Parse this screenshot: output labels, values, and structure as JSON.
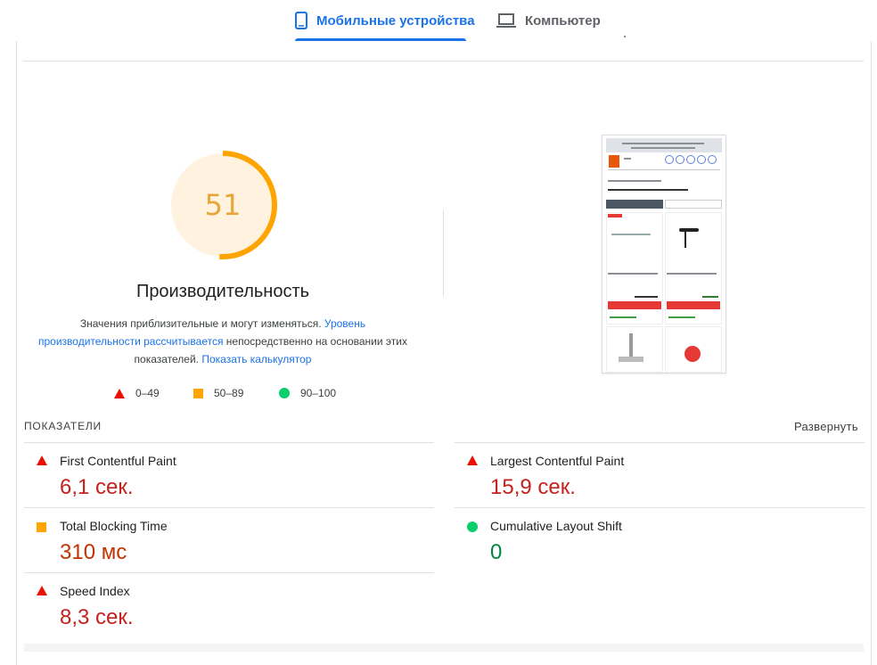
{
  "tabs": [
    {
      "label": "Мобильные устройства",
      "icon": "smartphone-icon",
      "active": true
    },
    {
      "label": "Компьютер",
      "icon": "laptop-icon",
      "active": false
    }
  ],
  "gauge": {
    "score": "51",
    "score_value": 51,
    "title": "Производительность",
    "color": "#ffa400"
  },
  "description": {
    "text1": "Значения приблизительные и могут изменяться. ",
    "link1": "Уровень производительности рассчитывается",
    "text2": " непосредственно на основании этих показателей. ",
    "link2": "Показать калькулятор"
  },
  "legend": [
    {
      "label": "0–49",
      "shape": "triangle",
      "color": "#eb0f00"
    },
    {
      "label": "50–89",
      "shape": "square",
      "color": "#ffa400"
    },
    {
      "label": "90–100",
      "shape": "circle",
      "color": "#0cce6b"
    }
  ],
  "metrics_section": {
    "title": "ПОКАЗАТЕЛИ",
    "expand_label": "Развернуть"
  },
  "metrics": [
    {
      "name": "First Contentful Paint",
      "value": "6,1 сек.",
      "status": "fail"
    },
    {
      "name": "Largest Contentful Paint",
      "value": "15,9 сек.",
      "status": "fail"
    },
    {
      "name": "Total Blocking Time",
      "value": "310 мс",
      "status": "average"
    },
    {
      "name": "Cumulative Layout Shift",
      "value": "0",
      "status": "pass"
    },
    {
      "name": "Speed Index",
      "value": "8,3 сек.",
      "status": "fail"
    }
  ]
}
